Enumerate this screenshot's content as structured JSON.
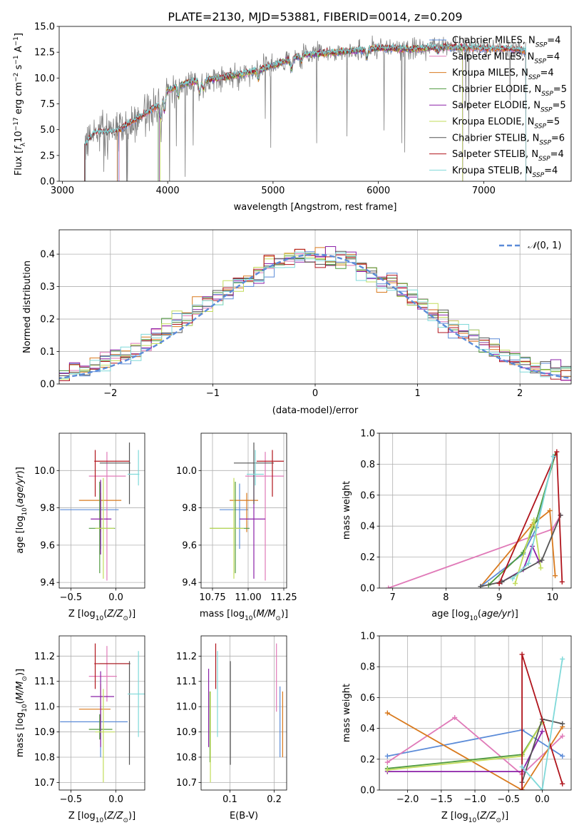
{
  "title": "PLATE=2130, MJD=53881, FIBERID=0014, z=0.209",
  "colors": {
    "Chabrier MILES": "#5b8bd8",
    "Salpeter MILES": "#e07ab8",
    "Kroupa MILES": "#d97a1e",
    "Chabrier ELODIE": "#4f9a3e",
    "Salpeter ELODIE": "#8b21a8",
    "Kroupa ELODIE": "#c2dc5a",
    "Chabrier STELIB": "#555555",
    "Salpeter STELIB": "#b0141c",
    "Kroupa STELIB": "#7fd9d9"
  },
  "chart_data": [
    {
      "id": "spectrum",
      "type": "line",
      "title": "PLATE=2130, MJD=53881, FIBERID=0014, z=0.209",
      "xlabel": "wavelength [Angstrom, rest frame]",
      "ylabel": "Flux [f_λ10^-17 erg cm^-2 s^-1 A^-1]",
      "xlim": [
        2970,
        7830
      ],
      "ylim": [
        0,
        15
      ],
      "xticks": [
        3000,
        4000,
        5000,
        6000,
        7000
      ],
      "yticks": [
        0.0,
        2.5,
        5.0,
        7.5,
        10.0,
        12.5,
        15.0
      ],
      "grid": false,
      "legend": "upper right",
      "legend_entries": [
        {
          "model": "Chabrier MILES",
          "nssp": "4"
        },
        {
          "model": "Salpeter MILES",
          "nssp": "4"
        },
        {
          "model": "Kroupa MILES",
          "nssp": "4"
        },
        {
          "model": "Chabrier ELODIE",
          "nssp": "5"
        },
        {
          "model": "Salpeter ELODIE",
          "nssp": "5"
        },
        {
          "model": "Kroupa ELODIE",
          "nssp": "5"
        },
        {
          "model": "Chabrier STELIB",
          "nssp": "6"
        },
        {
          "model": "Salpeter STELIB",
          "nssp": "4"
        },
        {
          "model": "Kroupa STELIB",
          "nssp": "4"
        }
      ],
      "continuum": {
        "wavelength": [
          3210,
          3300,
          3500,
          3700,
          3900,
          4000,
          4200,
          4500,
          4800,
          5000,
          5300,
          5600,
          6000,
          6300,
          6600,
          7000,
          7300,
          7400
        ],
        "flux": [
          3.5,
          4.7,
          4.8,
          6.0,
          7.3,
          8.8,
          9.6,
          10.0,
          10.6,
          11.2,
          12.3,
          12.5,
          12.9,
          12.8,
          13.0,
          12.9,
          12.8,
          12.6
        ]
      },
      "data_start_wavelength": {
        "Chabrier MILES": 3530,
        "Salpeter MILES": 3540,
        "Kroupa MILES": 3520,
        "Chabrier ELODIE": 3910,
        "Salpeter ELODIE": 3920,
        "Kroupa ELODIE": 3930,
        "Chabrier STELIB": 3210,
        "Salpeter STELIB": 3215,
        "Kroupa STELIB": 3220
      },
      "data_end_wavelength": {
        "Chabrier MILES": 7400,
        "Salpeter MILES": 7400,
        "Kroupa MILES": 7400,
        "Chabrier ELODIE": 6800,
        "Salpeter ELODIE": 6800,
        "Kroupa ELODIE": 6800,
        "Chabrier STELIB": 7400,
        "Salpeter STELIB": 7400,
        "Kroupa STELIB": 7400
      }
    },
    {
      "id": "residuals",
      "type": "line",
      "xlabel": "(data-model)/error",
      "ylabel": "Normed distribution",
      "xlim": [
        -2.5,
        2.5
      ],
      "ylim": [
        0,
        0.475
      ],
      "xticks": [
        -2,
        -1,
        0,
        1,
        2
      ],
      "yticks": [
        0.0,
        0.1,
        0.2,
        0.3,
        0.4
      ],
      "grid": true,
      "legend": "upper right",
      "reference_label": "N(0,1)",
      "reference": {
        "mean": 0,
        "sigma": 1
      }
    },
    {
      "id": "age-vs-Z",
      "type": "scatter",
      "xlabel": "Z [log10(Z/Z☉)]",
      "ylabel": "age [log10(age/yr)]",
      "xlim": [
        -0.63,
        0.32
      ],
      "ylim": [
        9.37,
        10.2
      ],
      "xticks": [
        -0.5,
        0.0
      ],
      "yticks": [
        9.4,
        9.6,
        9.8,
        10.0
      ],
      "grid": true,
      "points": [
        {
          "model": "Chabrier MILES",
          "x": -0.17,
          "y": 9.79,
          "xerr": [
            0.45,
            0.2
          ],
          "yerr": [
            0.21,
            0.14
          ]
        },
        {
          "model": "Salpeter MILES",
          "x": -0.1,
          "y": 9.97,
          "xerr": [
            0.2,
            0.21
          ],
          "yerr": [
            0.56,
            0.13
          ]
        },
        {
          "model": "Kroupa MILES",
          "x": -0.17,
          "y": 9.84,
          "xerr": [
            0.24,
            0.23
          ],
          "yerr": [
            0.17,
            0.04
          ]
        },
        {
          "model": "Chabrier ELODIE",
          "x": -0.18,
          "y": 9.69,
          "xerr": [
            0.12,
            0.17
          ],
          "yerr": [
            0.24,
            0.25
          ]
        },
        {
          "model": "Salpeter ELODIE",
          "x": -0.17,
          "y": 9.74,
          "xerr": [
            0.11,
            0.12
          ],
          "yerr": [
            0.19,
            0.21
          ]
        },
        {
          "model": "Kroupa ELODIE",
          "x": -0.14,
          "y": 9.69,
          "xerr": [
            0.09,
            0.12
          ],
          "yerr": [
            0.27,
            0.27
          ]
        },
        {
          "model": "Chabrier STELIB",
          "x": 0.15,
          "y": 10.04,
          "xerr": [
            0.33,
            0.01
          ],
          "yerr": [
            0.22,
            0.11
          ]
        },
        {
          "model": "Salpeter STELIB",
          "x": -0.23,
          "y": 10.05,
          "xerr": [
            0.01,
            0.38
          ],
          "yerr": [
            0.19,
            0.06
          ]
        },
        {
          "model": "Kroupa STELIB",
          "x": 0.25,
          "y": 9.98,
          "xerr": [
            0.12,
            0.01
          ],
          "yerr": [
            0.06,
            0.13
          ]
        }
      ]
    },
    {
      "id": "age-vs-mass",
      "type": "scatter",
      "xlabel": "mass [log10(M/M☉)]",
      "xlim": [
        10.67,
        11.27
      ],
      "ylim": [
        9.37,
        10.2
      ],
      "xticks": [
        10.75,
        11.0,
        11.25
      ],
      "yticks": [
        9.4,
        9.6,
        9.8,
        10.0
      ],
      "grid": true,
      "points": [
        {
          "model": "Chabrier MILES",
          "x": 10.94,
          "y": 9.79,
          "xerr": [
            0.14,
            0.06
          ],
          "yerr": [
            0.21,
            0.14
          ]
        },
        {
          "model": "Salpeter MILES",
          "x": 11.12,
          "y": 9.97,
          "xerr": [
            0.14,
            0.13
          ],
          "yerr": [
            0.56,
            0.13
          ]
        },
        {
          "model": "Kroupa MILES",
          "x": 10.99,
          "y": 9.84,
          "xerr": [
            0.12,
            0.08
          ],
          "yerr": [
            0.17,
            0.04
          ]
        },
        {
          "model": "Chabrier ELODIE",
          "x": 10.91,
          "y": 9.69,
          "xerr": [
            0.18,
            0.1
          ],
          "yerr": [
            0.24,
            0.25
          ]
        },
        {
          "model": "Salpeter ELODIE",
          "x": 11.04,
          "y": 9.74,
          "xerr": [
            0.1,
            0.08
          ],
          "yerr": [
            0.32,
            0.26
          ]
        },
        {
          "model": "Kroupa ELODIE",
          "x": 10.9,
          "y": 9.69,
          "xerr": [
            0.17,
            0.07
          ],
          "yerr": [
            0.27,
            0.27
          ]
        },
        {
          "model": "Chabrier STELIB",
          "x": 11.04,
          "y": 10.04,
          "xerr": [
            0.14,
            0.14
          ],
          "yerr": [
            0.22,
            0.11
          ]
        },
        {
          "model": "Salpeter STELIB",
          "x": 11.17,
          "y": 10.05,
          "xerr": [
            0.11,
            0.08
          ],
          "yerr": [
            0.19,
            0.06
          ]
        },
        {
          "model": "Kroupa STELIB",
          "x": 11.05,
          "y": 9.98,
          "xerr": [
            0.06,
            0.06
          ],
          "yerr": [
            0.06,
            0.13
          ]
        }
      ]
    },
    {
      "id": "weight-vs-age",
      "type": "line",
      "xlabel": "age [log10(age/yr)]",
      "ylabel": "mass weight",
      "xlim": [
        6.75,
        10.35
      ],
      "ylim": [
        0,
        1
      ],
      "xticks": [
        7,
        8,
        9,
        10
      ],
      "yticks": [
        0.0,
        0.2,
        0.4,
        0.6,
        0.8,
        1.0
      ],
      "grid": true,
      "series": [
        {
          "model": "Salpeter MILES",
          "x": [
            6.92,
            10.0,
            10.15
          ],
          "y": [
            0.0,
            0.38,
            0.47
          ]
        },
        {
          "model": "Kroupa MILES",
          "x": [
            8.65,
            9.62,
            9.95,
            10.05
          ],
          "y": [
            0.01,
            0.41,
            0.5,
            0.08
          ]
        },
        {
          "model": "Chabrier MILES",
          "x": [
            8.65,
            9.45,
            9.7,
            10.02
          ],
          "y": [
            0.01,
            0.22,
            0.39,
            0.85
          ]
        },
        {
          "model": "Chabrier ELODIE",
          "x": [
            8.8,
            9.45,
            9.7,
            10.05
          ],
          "y": [
            0.02,
            0.23,
            0.44,
            0.86
          ]
        },
        {
          "model": "Salpeter ELODIE",
          "x": [
            9.05,
            9.45,
            9.62,
            9.75
          ],
          "y": [
            0.04,
            0.12,
            0.27,
            0.17
          ]
        },
        {
          "model": "Kroupa ELODIE",
          "x": [
            9.3,
            9.65,
            9.78
          ],
          "y": [
            0.03,
            0.44,
            0.13
          ]
        },
        {
          "model": "Chabrier STELIB",
          "x": [
            8.65,
            9.05,
            9.8,
            10.15
          ],
          "y": [
            0.01,
            0.04,
            0.18,
            0.47
          ]
        },
        {
          "model": "Salpeter STELIB",
          "x": [
            9.0,
            10.08,
            10.18
          ],
          "y": [
            0.03,
            0.88,
            0.04
          ]
        },
        {
          "model": "Kroupa STELIB",
          "x": [
            9.25,
            9.55,
            10.02
          ],
          "y": [
            0.06,
            0.16,
            0.85
          ]
        }
      ]
    },
    {
      "id": "mass-vs-Z",
      "type": "scatter",
      "xlabel": "Z [log10(Z/Z☉)]",
      "ylabel": "mass [log10(M/M☉)]",
      "xlim": [
        -0.63,
        0.32
      ],
      "ylim": [
        10.67,
        11.28
      ],
      "xticks": [
        -0.5,
        0.0
      ],
      "yticks": [
        10.7,
        10.8,
        10.9,
        11.0,
        11.1,
        11.2
      ],
      "grid": true,
      "points": [
        {
          "model": "Chabrier MILES",
          "x": -0.17,
          "y": 10.94,
          "xerr": [
            0.45,
            0.3
          ],
          "yerr": [
            0.14,
            0.06
          ]
        },
        {
          "model": "Salpeter MILES",
          "x": -0.1,
          "y": 11.12,
          "xerr": [
            0.2,
            0.11
          ],
          "yerr": [
            0.1,
            0.12
          ]
        },
        {
          "model": "Kroupa MILES",
          "x": -0.17,
          "y": 10.99,
          "xerr": [
            0.24,
            0.11
          ],
          "yerr": [
            0.05,
            0.1
          ]
        },
        {
          "model": "Chabrier ELODIE",
          "x": -0.18,
          "y": 10.91,
          "xerr": [
            0.12,
            0.14
          ],
          "yerr": [
            0.04,
            0.06
          ]
        },
        {
          "model": "Salpeter ELODIE",
          "x": -0.17,
          "y": 11.04,
          "xerr": [
            0.11,
            0.15
          ],
          "yerr": [
            0.2,
            0.1
          ]
        },
        {
          "model": "Kroupa ELODIE",
          "x": -0.14,
          "y": 10.9,
          "xerr": [
            0.09,
            0.13
          ],
          "yerr": [
            0.2,
            0.17
          ]
        },
        {
          "model": "Chabrier STELIB",
          "x": 0.15,
          "y": 11.17,
          "xerr": [
            0.33,
            0.01
          ],
          "yerr": [
            0.4,
            0.01
          ]
        },
        {
          "model": "Salpeter STELIB",
          "x": -0.23,
          "y": 11.17,
          "xerr": [
            0.01,
            0.38
          ],
          "yerr": [
            0.1,
            0.08
          ]
        },
        {
          "model": "Kroupa STELIB",
          "x": 0.25,
          "y": 11.05,
          "xerr": [
            0.12,
            0.1
          ],
          "yerr": [
            0.17,
            0.17
          ]
        }
      ]
    },
    {
      "id": "mass-vs-ebv",
      "type": "scatter",
      "xlabel": "E(B-V)",
      "xlim": [
        0.035,
        0.228
      ],
      "ylim": [
        10.67,
        11.28
      ],
      "xticks": [
        0.0,
        0.1,
        0.2
      ],
      "yticks": [
        10.7,
        10.8,
        10.9,
        11.0,
        11.1,
        11.2
      ],
      "grid": true,
      "points": [
        {
          "model": "Chabrier MILES",
          "x": 0.213,
          "y": 10.94,
          "yerr": [
            0.14,
            0.14
          ]
        },
        {
          "model": "Salpeter MILES",
          "x": 0.205,
          "y": 11.12,
          "yerr": [
            0.14,
            0.13
          ]
        },
        {
          "model": "Kroupa MILES",
          "x": 0.219,
          "y": 10.99,
          "yerr": [
            0.19,
            0.07
          ]
        },
        {
          "model": "Chabrier ELODIE",
          "x": 0.055,
          "y": 10.91,
          "yerr": [
            0.13,
            0.15
          ]
        },
        {
          "model": "Salpeter ELODIE",
          "x": 0.052,
          "y": 11.04,
          "yerr": [
            0.2,
            0.11
          ]
        },
        {
          "model": "Kroupa ELODIE",
          "x": 0.056,
          "y": 10.9,
          "yerr": [
            0.2,
            0.16
          ]
        },
        {
          "model": "Chabrier STELIB",
          "x": 0.101,
          "y": 11.17,
          "yerr": [
            0.4,
            0.01
          ]
        },
        {
          "model": "Salpeter STELIB",
          "x": 0.068,
          "y": 11.17,
          "yerr": [
            0.1,
            0.08
          ]
        },
        {
          "model": "Kroupa STELIB",
          "x": 0.072,
          "y": 11.05,
          "yerr": [
            0.17,
            0.17
          ]
        }
      ]
    },
    {
      "id": "weight-vs-Z",
      "type": "line",
      "xlabel": "Z [log10(Z/Z☉)]",
      "ylabel": "mass weight",
      "xlim": [
        -2.42,
        0.43
      ],
      "ylim": [
        0,
        1
      ],
      "xticks": [
        -2.0,
        -1.5,
        -1.0,
        -0.5,
        0.0
      ],
      "yticks": [
        0.0,
        0.2,
        0.4,
        0.6,
        0.8,
        1.0
      ],
      "grid": true,
      "series": [
        {
          "model": "Chabrier MILES",
          "x": [
            -2.3,
            -0.3,
            0.3
          ],
          "y": [
            0.22,
            0.39,
            0.22
          ]
        },
        {
          "model": "Salpeter MILES",
          "x": [
            -2.3,
            -1.3,
            -0.3,
            0.3
          ],
          "y": [
            0.18,
            0.47,
            0.1,
            0.35
          ]
        },
        {
          "model": "Kroupa MILES",
          "x": [
            -2.3,
            -0.3,
            0.3
          ],
          "y": [
            0.5,
            0.0,
            0.41
          ]
        },
        {
          "model": "Chabrier ELODIE",
          "x": [
            -2.3,
            -0.3,
            0.0
          ],
          "y": [
            0.14,
            0.23,
            0.44
          ]
        },
        {
          "model": "Salpeter ELODIE",
          "x": [
            -2.3,
            -0.3,
            0.0
          ],
          "y": [
            0.12,
            0.12,
            0.38
          ]
        },
        {
          "model": "Kroupa ELODIE",
          "x": [
            -2.3,
            -0.3,
            0.0
          ],
          "y": [
            0.13,
            0.22,
            0.44
          ]
        },
        {
          "model": "Chabrier STELIB",
          "x": [
            -0.3,
            0.0,
            0.3
          ],
          "y": [
            0.05,
            0.46,
            0.43
          ]
        },
        {
          "model": "Salpeter STELIB",
          "x": [
            -0.3,
            -0.3,
            0.3
          ],
          "y": [
            0.0,
            0.88,
            0.04
          ]
        },
        {
          "model": "Kroupa STELIB",
          "x": [
            -0.3,
            0.0,
            0.3
          ],
          "y": [
            0.15,
            0.0,
            0.85
          ]
        }
      ]
    }
  ]
}
